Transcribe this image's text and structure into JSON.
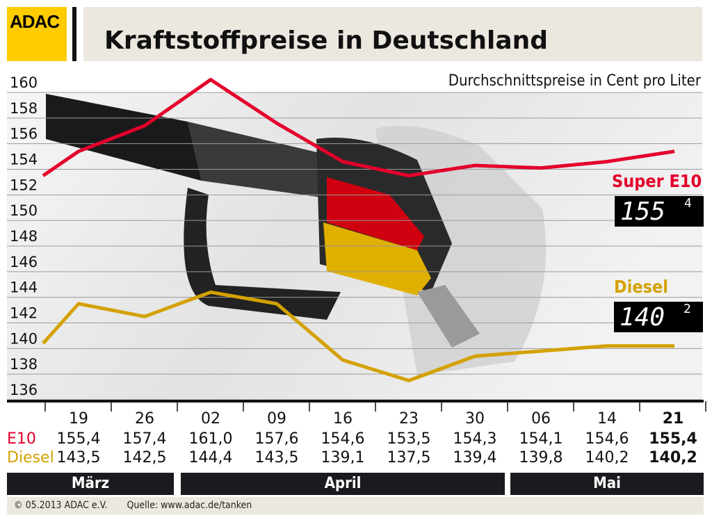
{
  "header": {
    "logo": "ADAC",
    "title": "Kraftstoffpreise in Deutschland",
    "subtitle": "Durchschnittspreise in Cent pro Liter"
  },
  "chart_data": {
    "type": "line",
    "title": "Kraftstoffpreise in Deutschland",
    "subtitle": "Durchschnittspreise in Cent pro Liter",
    "categories": [
      "19",
      "26",
      "02",
      "09",
      "16",
      "23",
      "30",
      "06",
      "14",
      "21"
    ],
    "months": [
      {
        "label": "März",
        "span": 2
      },
      {
        "label": "April",
        "span": 5
      },
      {
        "label": "Mai",
        "span": 3
      }
    ],
    "ylim": [
      136,
      160
    ],
    "yticks": [
      "160",
      "158",
      "156",
      "154",
      "152",
      "150",
      "148",
      "146",
      "144",
      "142",
      "140",
      "138",
      "136"
    ],
    "grid": true,
    "series": [
      {
        "name": "Super E10",
        "row_label": "E10",
        "color": "#e4002b",
        "start_value": 153.5,
        "values": [
          155.4,
          157.4,
          161.0,
          157.6,
          154.6,
          153.5,
          154.3,
          154.1,
          154.6,
          155.4
        ],
        "labels": [
          "155,4",
          "157,4",
          "161,0",
          "157,6",
          "154,6",
          "153,5",
          "154,3",
          "154,1",
          "154,6",
          "155,4"
        ],
        "display": {
          "main": "155",
          "decimal": "4"
        }
      },
      {
        "name": "Diesel",
        "row_label": "Diesel",
        "color": "#d4a100",
        "start_value": 140.4,
        "values": [
          143.5,
          142.5,
          144.4,
          143.5,
          139.1,
          137.5,
          139.4,
          139.8,
          140.2,
          140.2
        ],
        "labels": [
          "143,5",
          "142,5",
          "144,4",
          "143,5",
          "139,1",
          "137,5",
          "139,4",
          "139,8",
          "140,2",
          "140,2"
        ],
        "display": {
          "main": "140",
          "decimal": "2"
        }
      }
    ]
  },
  "footer": {
    "copyright": "© 05.2013  ADAC e.V.",
    "source": "Quelle: www.adac.de/tanken"
  }
}
